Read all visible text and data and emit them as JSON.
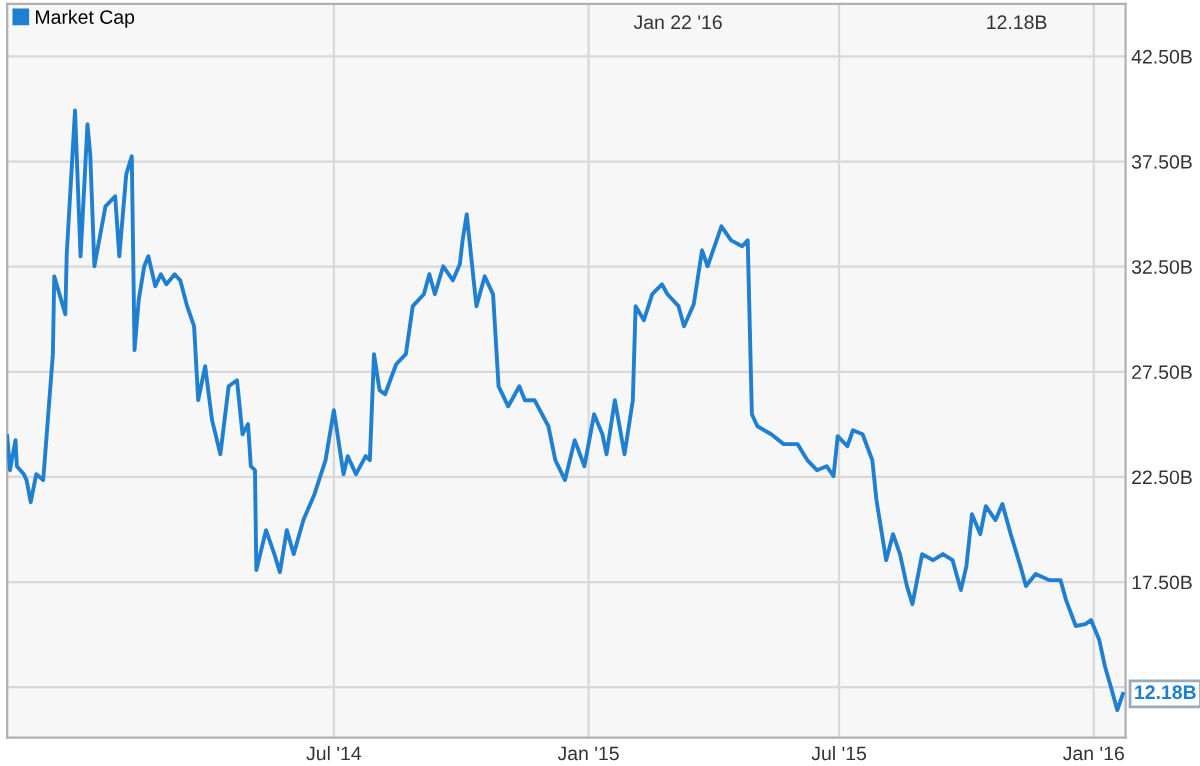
{
  "chart_data": {
    "type": "line",
    "legend": "top left",
    "grid": true,
    "marker": "none",
    "line_style": "solid",
    "xlim": [
      "2013-11-07",
      "2016-01-24"
    ],
    "ylim": [
      10.1,
      45
    ],
    "xticks": [
      {
        "value": "2014-07-01",
        "label": "Jul '14"
      },
      {
        "value": "2015-01-01",
        "label": "Jan '15"
      },
      {
        "value": "2015-07-01",
        "label": "Jul '15"
      },
      {
        "value": "2016-01-01",
        "label": "Jan '16"
      }
    ],
    "yticks": [
      {
        "value": 12.5,
        "label": null
      },
      {
        "value": 17.5,
        "label": "17.50B"
      },
      {
        "value": 22.5,
        "label": "22.50B"
      },
      {
        "value": 27.5,
        "label": "27.50B"
      },
      {
        "value": 32.5,
        "label": "32.50B"
      },
      {
        "value": 37.5,
        "label": "37.50B"
      },
      {
        "value": 42.5,
        "label": "42.50B"
      }
    ],
    "annotations": [
      "Jan 22 '16",
      "12.18B",
      {
        "text": "12.18B",
        "x": "2016-01-22",
        "y": 12.18
      }
    ],
    "x": [
      "2013-11-07",
      "2013-11-09",
      "2013-11-13",
      "2013-11-14",
      "2013-11-19",
      "2013-11-21",
      "2013-11-24",
      "2013-11-28",
      "2013-12-03",
      "2013-12-06",
      "2013-12-10",
      "2013-12-11",
      "2013-12-19",
      "2013-12-20",
      "2013-12-26",
      "2013-12-30",
      "2014-01-04",
      "2014-01-06",
      "2014-01-09",
      "2014-01-17",
      "2014-01-24",
      "2014-01-27",
      "2014-02-01",
      "2014-02-05",
      "2014-02-07",
      "2014-02-10",
      "2014-02-14",
      "2014-02-17",
      "2014-02-22",
      "2014-02-26",
      "2014-03-02",
      "2014-03-08",
      "2014-03-12",
      "2014-03-17",
      "2014-03-22",
      "2014-03-25",
      "2014-03-30",
      "2014-04-04",
      "2014-04-10",
      "2014-04-16",
      "2014-04-22",
      "2014-04-26",
      "2014-04-30",
      "2014-05-02",
      "2014-05-05",
      "2014-05-06",
      "2014-05-13",
      "2014-05-19",
      "2014-05-23",
      "2014-05-28",
      "2014-06-02",
      "2014-06-09",
      "2014-06-17",
      "2014-06-25",
      "2014-07-01",
      "2014-07-08",
      "2014-07-11",
      "2014-07-17",
      "2014-07-24",
      "2014-07-27",
      "2014-07-30",
      "2014-08-03",
      "2014-08-07",
      "2014-08-15",
      "2014-08-22",
      "2014-08-27",
      "2014-09-04",
      "2014-09-08",
      "2014-09-12",
      "2014-09-18",
      "2014-09-25",
      "2014-09-30",
      "2014-10-02",
      "2014-10-05",
      "2014-10-10",
      "2014-10-12",
      "2014-10-18",
      "2014-10-24",
      "2014-10-28",
      "2014-11-04",
      "2014-11-12",
      "2014-11-16",
      "2014-11-23",
      "2014-12-03",
      "2014-12-08",
      "2014-12-15",
      "2014-12-22",
      "2014-12-29",
      "2015-01-05",
      "2015-01-11",
      "2015-01-14",
      "2015-01-20",
      "2015-01-27",
      "2015-02-02",
      "2015-02-04",
      "2015-02-10",
      "2015-02-16",
      "2015-02-23",
      "2015-02-27",
      "2015-03-07",
      "2015-03-11",
      "2015-03-18",
      "2015-03-24",
      "2015-03-28",
      "2015-04-07",
      "2015-04-14",
      "2015-04-22",
      "2015-04-26",
      "2015-04-29",
      "2015-05-03",
      "2015-05-13",
      "2015-05-22",
      "2015-06-01",
      "2015-06-08",
      "2015-06-15",
      "2015-06-22",
      "2015-06-27",
      "2015-06-30",
      "2015-07-07",
      "2015-07-11",
      "2015-07-18",
      "2015-07-25",
      "2015-07-28",
      "2015-08-04",
      "2015-08-09",
      "2015-08-14",
      "2015-08-19",
      "2015-08-23",
      "2015-08-30",
      "2015-09-07",
      "2015-09-14",
      "2015-09-21",
      "2015-09-27",
      "2015-10-01",
      "2015-10-05",
      "2015-10-11",
      "2015-10-15",
      "2015-10-22",
      "2015-10-27",
      "2015-11-02",
      "2015-11-09",
      "2015-11-13",
      "2015-11-20",
      "2015-11-30",
      "2015-12-08",
      "2015-12-12",
      "2015-12-19",
      "2015-12-26",
      "2015-12-30",
      "2016-01-05",
      "2016-01-09",
      "2016-01-14",
      "2016-01-18",
      "2016-01-22"
    ],
    "series": [
      {
        "name": "Market Cap",
        "color": "#1f7fd0",
        "values": [
          24.44,
          22.82,
          24.25,
          23.01,
          22.63,
          22.35,
          21.3,
          22.63,
          22.35,
          24.91,
          28.34,
          32.04,
          30.24,
          33.09,
          39.93,
          32.99,
          39.27,
          37.84,
          32.52,
          35.37,
          35.85,
          32.99,
          36.89,
          37.75,
          28.53,
          30.9,
          32.52,
          32.99,
          31.57,
          32.14,
          31.66,
          32.14,
          31.85,
          30.62,
          29.67,
          26.15,
          27.77,
          25.2,
          23.58,
          26.81,
          27.1,
          24.53,
          25.01,
          23.01,
          22.82,
          18.07,
          19.97,
          18.83,
          17.97,
          19.97,
          18.83,
          20.45,
          21.68,
          23.3,
          25.67,
          22.63,
          23.49,
          22.63,
          23.49,
          23.3,
          28.34,
          26.63,
          26.43,
          27.86,
          28.34,
          30.62,
          31.19,
          32.14,
          31.19,
          32.52,
          31.85,
          32.61,
          33.75,
          34.99,
          31.85,
          30.62,
          32.04,
          31.19,
          26.81,
          25.86,
          26.81,
          26.15,
          26.15,
          24.91,
          23.3,
          22.35,
          24.25,
          23.01,
          25.48,
          24.53,
          23.58,
          26.15,
          23.58,
          26.15,
          30.62,
          29.95,
          31.19,
          31.66,
          31.19,
          30.62,
          29.67,
          30.71,
          33.28,
          32.52,
          34.42,
          33.75,
          33.47,
          33.75,
          25.48,
          24.91,
          24.53,
          24.06,
          24.06,
          23.3,
          22.82,
          23.01,
          22.54,
          24.44,
          23.96,
          24.72,
          24.53,
          23.3,
          21.4,
          18.54,
          19.78,
          18.83,
          17.31,
          16.45,
          18.83,
          18.54,
          18.83,
          18.54,
          17.12,
          18.26,
          20.73,
          19.78,
          21.11,
          20.45,
          21.21,
          19.78,
          18.26,
          17.31,
          17.88,
          17.59,
          17.59,
          16.64,
          15.41,
          15.5,
          15.69,
          14.74,
          13.51,
          12.37,
          11.41,
          12.18
        ]
      }
    ]
  }
}
